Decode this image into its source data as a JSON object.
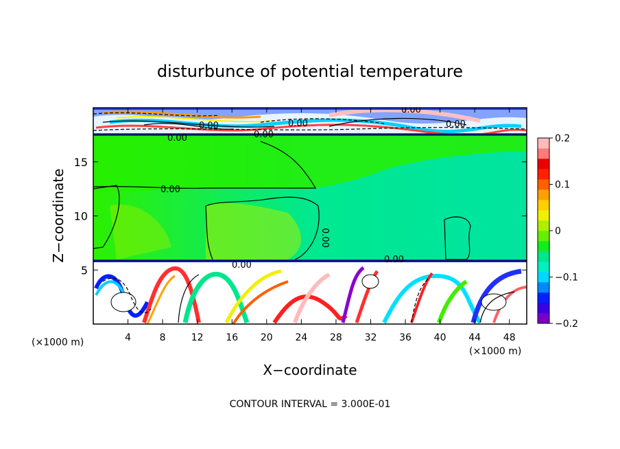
{
  "chart_data": {
    "type": "heatmap",
    "title": "disturbunce of potential temperature",
    "xlabel": "X−coordinate",
    "ylabel": "Z−coordinate",
    "x_unit_left": "(×1000 m)",
    "x_unit_right": "(×1000 m)",
    "xlim": [
      0,
      50
    ],
    "ylim": [
      0,
      20
    ],
    "x_ticks": [
      4,
      8,
      12,
      16,
      20,
      24,
      28,
      32,
      36,
      40,
      44,
      48
    ],
    "y_ticks": [
      5,
      10,
      15
    ],
    "colorbar": {
      "min": -0.2,
      "max": 0.2,
      "tick_values": [
        0.2,
        0.1,
        0,
        -0.1,
        -0.2
      ],
      "tick_labels": [
        "0.2",
        "0.1",
        "0",
        "−0.1",
        "−0.2"
      ],
      "colors": [
        "#7a00c8",
        "#3a00e6",
        "#0022ff",
        "#0088ff",
        "#00d8ff",
        "#00f0c0",
        "#00e68c",
        "#10ee20",
        "#66ee00",
        "#b0ee00",
        "#f0f000",
        "#ffd000",
        "#ffa000",
        "#ff6000",
        "#ff2000",
        "#ee0000",
        "#ff7a7a",
        "#ffbbbb"
      ]
    },
    "contour_labels": [
      "0.00",
      "0.00",
      "0.00",
      "0.00",
      "0.00",
      "0.00",
      "0.00",
      "0.00",
      "0.00",
      "0.00"
    ],
    "footer": "CONTOUR INTERVAL = 3.000E-01"
  }
}
